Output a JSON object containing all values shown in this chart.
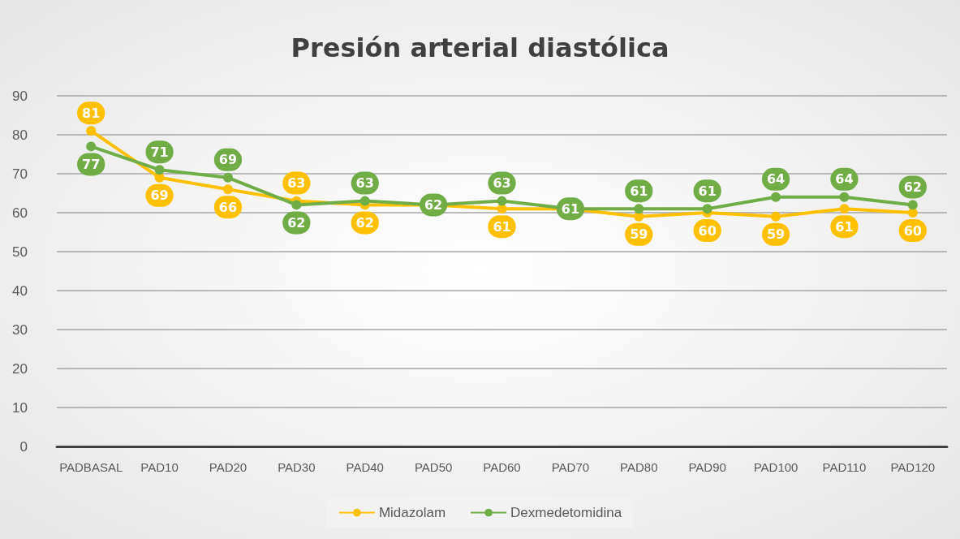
{
  "chart_data": {
    "type": "line",
    "title": "Presión arterial diastólica",
    "categories": [
      "PADBASAL",
      "PAD10",
      "PAD20",
      "PAD30",
      "PAD40",
      "PAD50",
      "PAD60",
      "PAD70",
      "PAD80",
      "PAD90",
      "PAD100",
      "PAD110",
      "PAD120"
    ],
    "series": [
      {
        "name": "Midazolam",
        "color": "#ffc000",
        "values": [
          81,
          69,
          66,
          63,
          62,
          62,
          61,
          61,
          59,
          60,
          59,
          61,
          60
        ],
        "value_labels": [
          "81",
          "69",
          "66",
          "63",
          "62",
          null,
          "61",
          null,
          "59",
          "60",
          "59",
          "61",
          "60"
        ]
      },
      {
        "name": "Dexmedetomidina",
        "color": "#70ad47",
        "values": [
          77,
          71,
          69,
          62,
          63,
          62,
          63,
          61,
          61,
          61,
          64,
          64,
          62
        ]
      }
    ],
    "ylim": [
      0,
      90
    ],
    "yticks": [
      0,
      10,
      20,
      30,
      40,
      50,
      60,
      70,
      80,
      90
    ],
    "grid": "y",
    "legend": "bottom",
    "marker": "circle",
    "line_style": "solid",
    "data_labels": true
  }
}
